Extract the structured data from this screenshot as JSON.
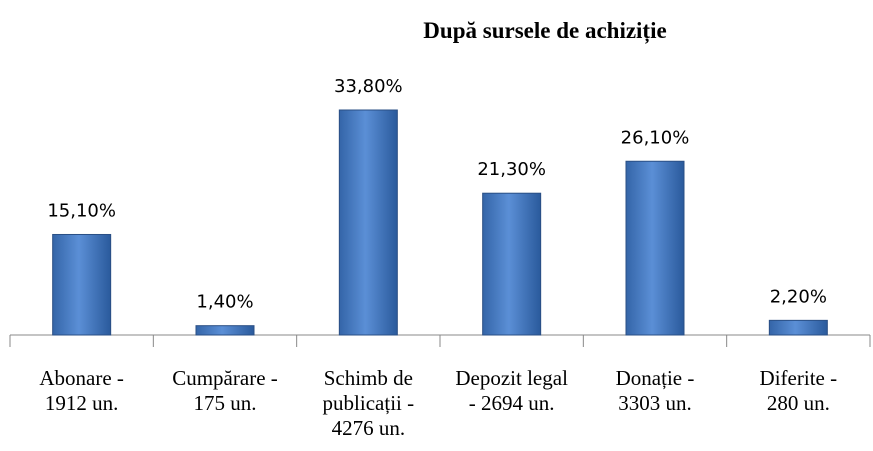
{
  "chart_data": {
    "type": "bar",
    "title": "După sursele de achiziție",
    "categories": [
      "Abonare -\n1912 un.",
      "Cumpărare -\n175 un.",
      "Schimb de\npublicații -\n4276 un.",
      "Depozit legal\n- 2694 un.",
      "Donație -\n3303 un.",
      "Diferite -\n280 un."
    ],
    "values": [
      15.1,
      1.4,
      33.8,
      21.3,
      26.1,
      2.2
    ],
    "value_labels": [
      "15,10%",
      "1,40%",
      "33,80%",
      "21,30%",
      "26,10%",
      "2,20%"
    ],
    "color": "#4f81bd"
  }
}
